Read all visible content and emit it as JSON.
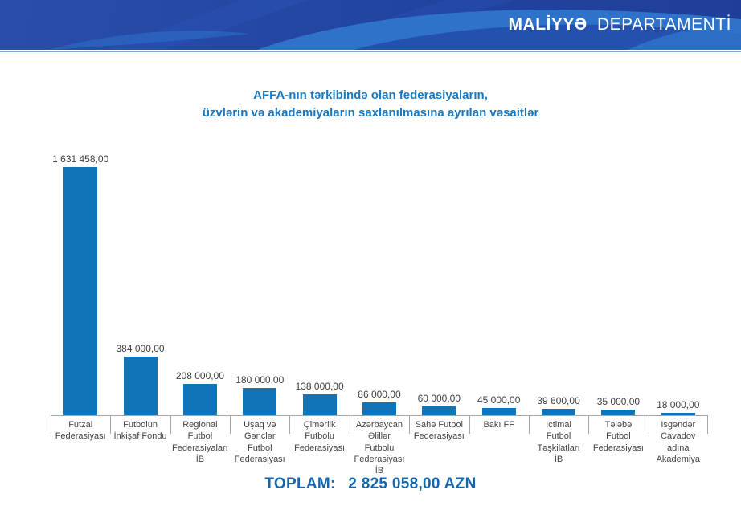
{
  "header": {
    "brand_bold": "MALİYYƏ",
    "brand_regular": "DEPARTAMENTİ"
  },
  "title": {
    "line1": "AFFA-nın tərkibində olan federasiyaların,",
    "line2": "üzvlərin və akademiyaların saxlanılmasına ayrılan vəsaitlər"
  },
  "chart_data": {
    "type": "bar",
    "title": "AFFA-nın tərkibində olan federasiyaların, üzvlərin və akademiyaların saxlanılmasına ayrılan vəsaitlər",
    "categories": [
      "Futzal\nFederasiyası",
      "Futbolun\nİnkişaf Fondu",
      "Regional\nFutbol\nFederasiyaları\nİB",
      "Uşaq və\nGənclər\nFutbol\nFederasiyası",
      "Çimərlik\nFutbolu\nFederasiyası",
      "Azərbaycan\nƏlillər\nFutbolu\nFederasiyası\nİB",
      "Sahə Futbol\nFederasiyası",
      "Bakı FF",
      "İctimai\nFutbol\nTəşkilatları\nİB",
      "Tələbə\nFutbol\nFederasiyası",
      "Isgəndər\nCavadov\nadına\nAkademiya"
    ],
    "values": [
      1631458,
      384000,
      208000,
      180000,
      138000,
      86000,
      60000,
      45000,
      39600,
      35000,
      18000
    ],
    "value_labels": [
      "1 631 458,00",
      "384 000,00",
      "208 000,00",
      "180 000,00",
      "138 000,00",
      "86 000,00",
      "60 000,00",
      "45 000,00",
      "39 600,00",
      "35 000,00",
      "18 000,00"
    ],
    "ylim": [
      0,
      1631458
    ],
    "grid": false,
    "legend": false,
    "bar_color": "#1173b8",
    "xlabel": "",
    "ylabel": ""
  },
  "total": {
    "label": "TOPLAM:",
    "value": "2 825 058,00 AZN"
  },
  "colors": {
    "banner_base": "#2144a1",
    "banner_swoosh": "#2e72c9",
    "banner_underline": "#7fa9dd",
    "title_text": "#1878c0",
    "total_text": "#1565ae",
    "bar": "#1173b8",
    "axis": "#a6a6a6",
    "label_text": "#404040"
  }
}
